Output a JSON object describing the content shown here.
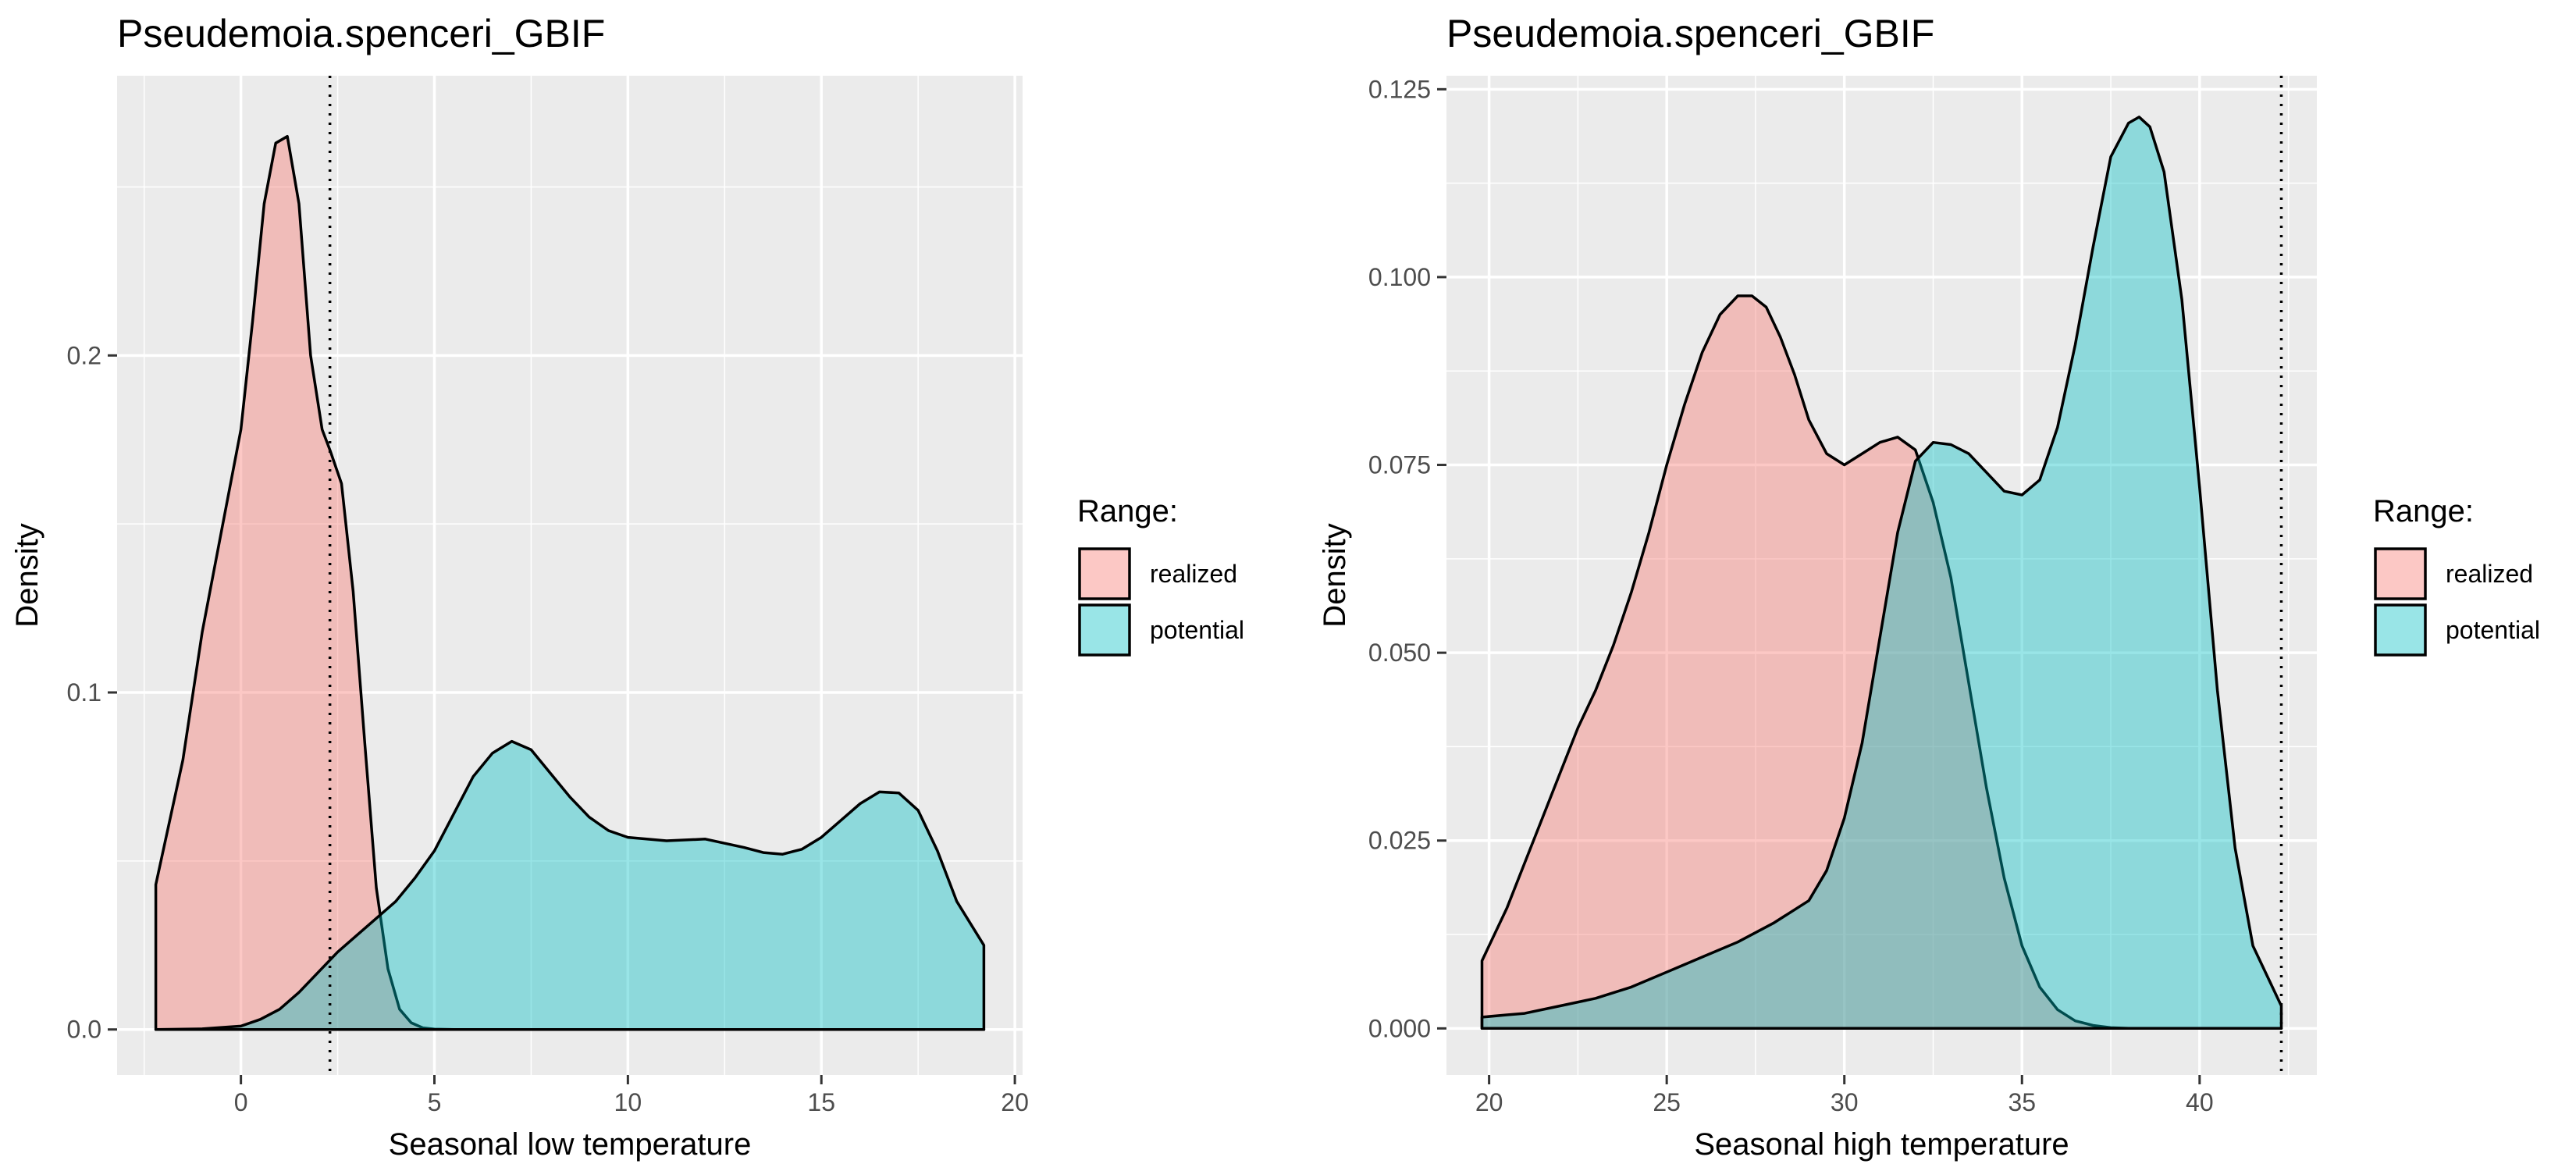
{
  "chart_data": [
    {
      "type": "area",
      "title": "Pseudemoia.spenceri_GBIF",
      "xlabel": "Seasonal low temperature",
      "ylabel": "Density",
      "xlim": [
        -3.2,
        20.2
      ],
      "ylim": [
        -0.0135,
        0.283
      ],
      "xticks": [
        0,
        5,
        10,
        15,
        20
      ],
      "xtick_labels": [
        "0",
        "5",
        "10",
        "15",
        "20"
      ],
      "yticks": [
        0.0,
        0.1,
        0.2
      ],
      "ytick_labels": [
        "0.0",
        "0.1",
        "0.2"
      ],
      "vline": 2.3,
      "grid": true,
      "legend": {
        "title": "Range:",
        "position": "right",
        "entries": [
          "realized",
          "potential"
        ]
      },
      "colors": {
        "realized": "#F8766D",
        "potential": "#00BFC4",
        "panel": "#EBEBEB",
        "grid": "#FFFFFF",
        "outline": "#000000"
      },
      "series": [
        {
          "name": "realized",
          "x": [
            -2.2,
            -1.5,
            -1.0,
            -0.5,
            0.0,
            0.3,
            0.6,
            0.9,
            1.2,
            1.5,
            1.8,
            2.1,
            2.3,
            2.6,
            2.9,
            3.2,
            3.5,
            3.8,
            4.1,
            4.4,
            4.7,
            5.0,
            5.5,
            6.0,
            19.2
          ],
          "y": [
            0.043,
            0.08,
            0.118,
            0.148,
            0.178,
            0.21,
            0.245,
            0.263,
            0.265,
            0.245,
            0.2,
            0.178,
            0.172,
            0.162,
            0.13,
            0.085,
            0.042,
            0.018,
            0.006,
            0.002,
            0.0005,
            0.0001,
            0.0,
            0.0,
            0.0
          ]
        },
        {
          "name": "potential",
          "x": [
            -2.2,
            -1.0,
            0.0,
            0.5,
            1.0,
            1.5,
            2.0,
            2.5,
            3.0,
            3.5,
            4.0,
            4.5,
            5.0,
            5.5,
            6.0,
            6.5,
            7.0,
            7.5,
            8.0,
            8.5,
            9.0,
            9.5,
            10.0,
            11.0,
            12.0,
            13.0,
            13.5,
            14.0,
            14.5,
            15.0,
            15.5,
            16.0,
            16.5,
            17.0,
            17.5,
            18.0,
            18.5,
            19.2
          ],
          "y": [
            0.0,
            0.0002,
            0.001,
            0.003,
            0.006,
            0.011,
            0.017,
            0.023,
            0.028,
            0.033,
            0.038,
            0.045,
            0.053,
            0.064,
            0.075,
            0.082,
            0.0855,
            0.083,
            0.076,
            0.069,
            0.063,
            0.059,
            0.057,
            0.056,
            0.0565,
            0.054,
            0.0525,
            0.052,
            0.0535,
            0.057,
            0.062,
            0.067,
            0.0705,
            0.0702,
            0.065,
            0.053,
            0.038,
            0.025
          ]
        }
      ]
    },
    {
      "type": "area",
      "title": "Pseudemoia.spenceri_GBIF",
      "xlabel": "Seasonal high temperature",
      "ylabel": "Density",
      "xlim": [
        18.8,
        43.3
      ],
      "ylim": [
        -0.0062,
        0.1268
      ],
      "xticks": [
        20,
        25,
        30,
        35,
        40
      ],
      "xtick_labels": [
        "20",
        "25",
        "30",
        "35",
        "40"
      ],
      "yticks": [
        0.0,
        0.025,
        0.05,
        0.075,
        0.1,
        0.125
      ],
      "ytick_labels": [
        "0.000",
        "0.025",
        "0.050",
        "0.075",
        "0.100",
        "0.125"
      ],
      "vline": 42.3,
      "grid": true,
      "legend": {
        "title": "Range:",
        "position": "right",
        "entries": [
          "realized",
          "potential"
        ]
      },
      "colors": {
        "realized": "#F8766D",
        "potential": "#00BFC4",
        "panel": "#EBEBEB",
        "grid": "#FFFFFF",
        "outline": "#000000"
      },
      "series": [
        {
          "name": "realized",
          "x": [
            19.8,
            20.5,
            21.0,
            21.5,
            22.0,
            22.5,
            23.0,
            23.5,
            24.0,
            24.5,
            25.0,
            25.5,
            26.0,
            26.5,
            27.0,
            27.4,
            27.8,
            28.2,
            28.6,
            29.0,
            29.5,
            30.0,
            30.5,
            31.0,
            31.5,
            32.0,
            32.5,
            33.0,
            33.5,
            34.0,
            34.5,
            35.0,
            35.5,
            36.0,
            36.5,
            37.0,
            37.5,
            38.0,
            39.0,
            42.3
          ],
          "y": [
            0.009,
            0.016,
            0.022,
            0.028,
            0.034,
            0.04,
            0.045,
            0.051,
            0.058,
            0.066,
            0.075,
            0.083,
            0.09,
            0.095,
            0.0975,
            0.0975,
            0.096,
            0.092,
            0.087,
            0.081,
            0.0765,
            0.075,
            0.0765,
            0.078,
            0.0787,
            0.077,
            0.07,
            0.06,
            0.046,
            0.032,
            0.02,
            0.011,
            0.0055,
            0.0025,
            0.001,
            0.0004,
            0.0001,
            0.0,
            0.0,
            0.0
          ]
        },
        {
          "name": "potential",
          "x": [
            19.8,
            20.5,
            21.0,
            22.0,
            23.0,
            24.0,
            25.0,
            26.0,
            27.0,
            28.0,
            29.0,
            29.5,
            30.0,
            30.5,
            31.0,
            31.5,
            32.0,
            32.5,
            33.0,
            33.5,
            34.0,
            34.5,
            35.0,
            35.5,
            36.0,
            36.5,
            37.0,
            37.5,
            38.0,
            38.3,
            38.6,
            39.0,
            39.5,
            40.0,
            40.5,
            41.0,
            41.5,
            42.3
          ],
          "y": [
            0.0015,
            0.0018,
            0.002,
            0.003,
            0.004,
            0.0055,
            0.0075,
            0.0095,
            0.0115,
            0.014,
            0.017,
            0.021,
            0.028,
            0.038,
            0.052,
            0.066,
            0.0755,
            0.078,
            0.0777,
            0.0765,
            0.074,
            0.0715,
            0.071,
            0.073,
            0.08,
            0.091,
            0.104,
            0.116,
            0.1205,
            0.1213,
            0.12,
            0.114,
            0.097,
            0.072,
            0.045,
            0.024,
            0.011,
            0.003
          ]
        }
      ]
    }
  ]
}
